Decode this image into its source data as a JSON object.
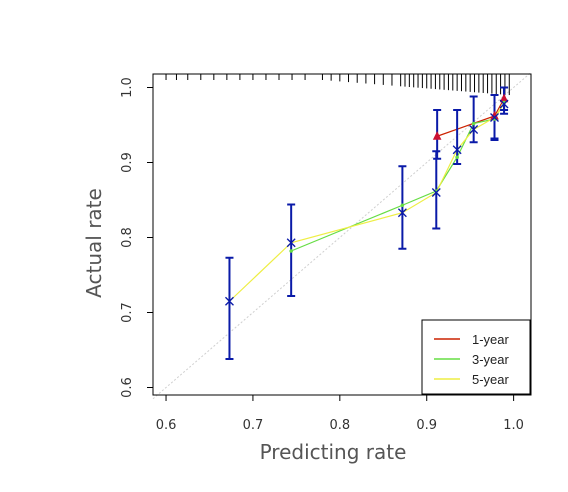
{
  "chart_data": {
    "type": "line",
    "xlabel": "Predicting  rate",
    "ylabel": "Actual rate",
    "xlim": [
      0.585,
      1.02
    ],
    "ylim": [
      0.59,
      1.018
    ],
    "x_ticks": [
      0.6,
      0.7,
      0.8,
      0.9,
      1.0
    ],
    "x_tick_labels": [
      "0.6",
      "0.7",
      "0.8",
      "0.9",
      "1.0"
    ],
    "y_ticks": [
      0.6,
      0.7,
      0.8,
      0.9,
      1.0
    ],
    "y_tick_labels": [
      "0.6",
      "0.7",
      "0.8",
      "0.9",
      "1.0"
    ],
    "reference_line": [
      [
        0.585,
        0.585
      ],
      [
        1.02,
        1.02
      ]
    ],
    "legend_position": "bottom-right",
    "series": [
      {
        "name": "1-year",
        "color": "#cc2200",
        "marker": "triangle",
        "x": [
          0.912,
          0.978,
          0.989
        ],
        "y": [
          0.935,
          0.962,
          0.985
        ],
        "err_lo": [
          0.905,
          0.932,
          0.97
        ],
        "err_hi": [
          0.97,
          0.99,
          1.0
        ]
      },
      {
        "name": "3-year",
        "color": "#66dd44",
        "marker": "circle",
        "x": [
          0.744,
          0.872,
          0.911,
          0.935,
          0.954,
          0.978,
          0.989
        ],
        "y": [
          0.782,
          0.843,
          0.862,
          0.907,
          0.952,
          0.958,
          0.98
        ],
        "err_lo": [],
        "err_hi": []
      },
      {
        "name": "5-year",
        "color": "#eeee44",
        "marker": "cross",
        "x": [
          0.673,
          0.744,
          0.872,
          0.911,
          0.935,
          0.954,
          0.978,
          0.989
        ],
        "y": [
          0.715,
          0.793,
          0.833,
          0.86,
          0.917,
          0.944,
          0.96,
          0.978
        ],
        "err_lo": [
          0.638,
          0.722,
          0.785,
          0.812,
          0.898,
          0.927,
          0.93,
          0.965
        ],
        "err_hi": [
          0.773,
          0.844,
          0.895,
          0.915,
          0.97,
          0.988,
          0.99,
          1.0
        ]
      }
    ],
    "rug_x": [
      0.78,
      0.79,
      0.8,
      0.81,
      0.82,
      0.83,
      0.84,
      0.85,
      0.86,
      0.87,
      0.875,
      0.88,
      0.885,
      0.89,
      0.895,
      0.9,
      0.905,
      0.91,
      0.915,
      0.92,
      0.925,
      0.93,
      0.935,
      0.94,
      0.945,
      0.95,
      0.955,
      0.96,
      0.965,
      0.97,
      0.975,
      0.98,
      0.985,
      0.99,
      0.995
    ],
    "rug_x_left": [
      0.585,
      0.6,
      0.612,
      0.625,
      0.64,
      0.655,
      0.67,
      0.685,
      0.7,
      0.715,
      0.73,
      0.745,
      0.76
    ]
  }
}
